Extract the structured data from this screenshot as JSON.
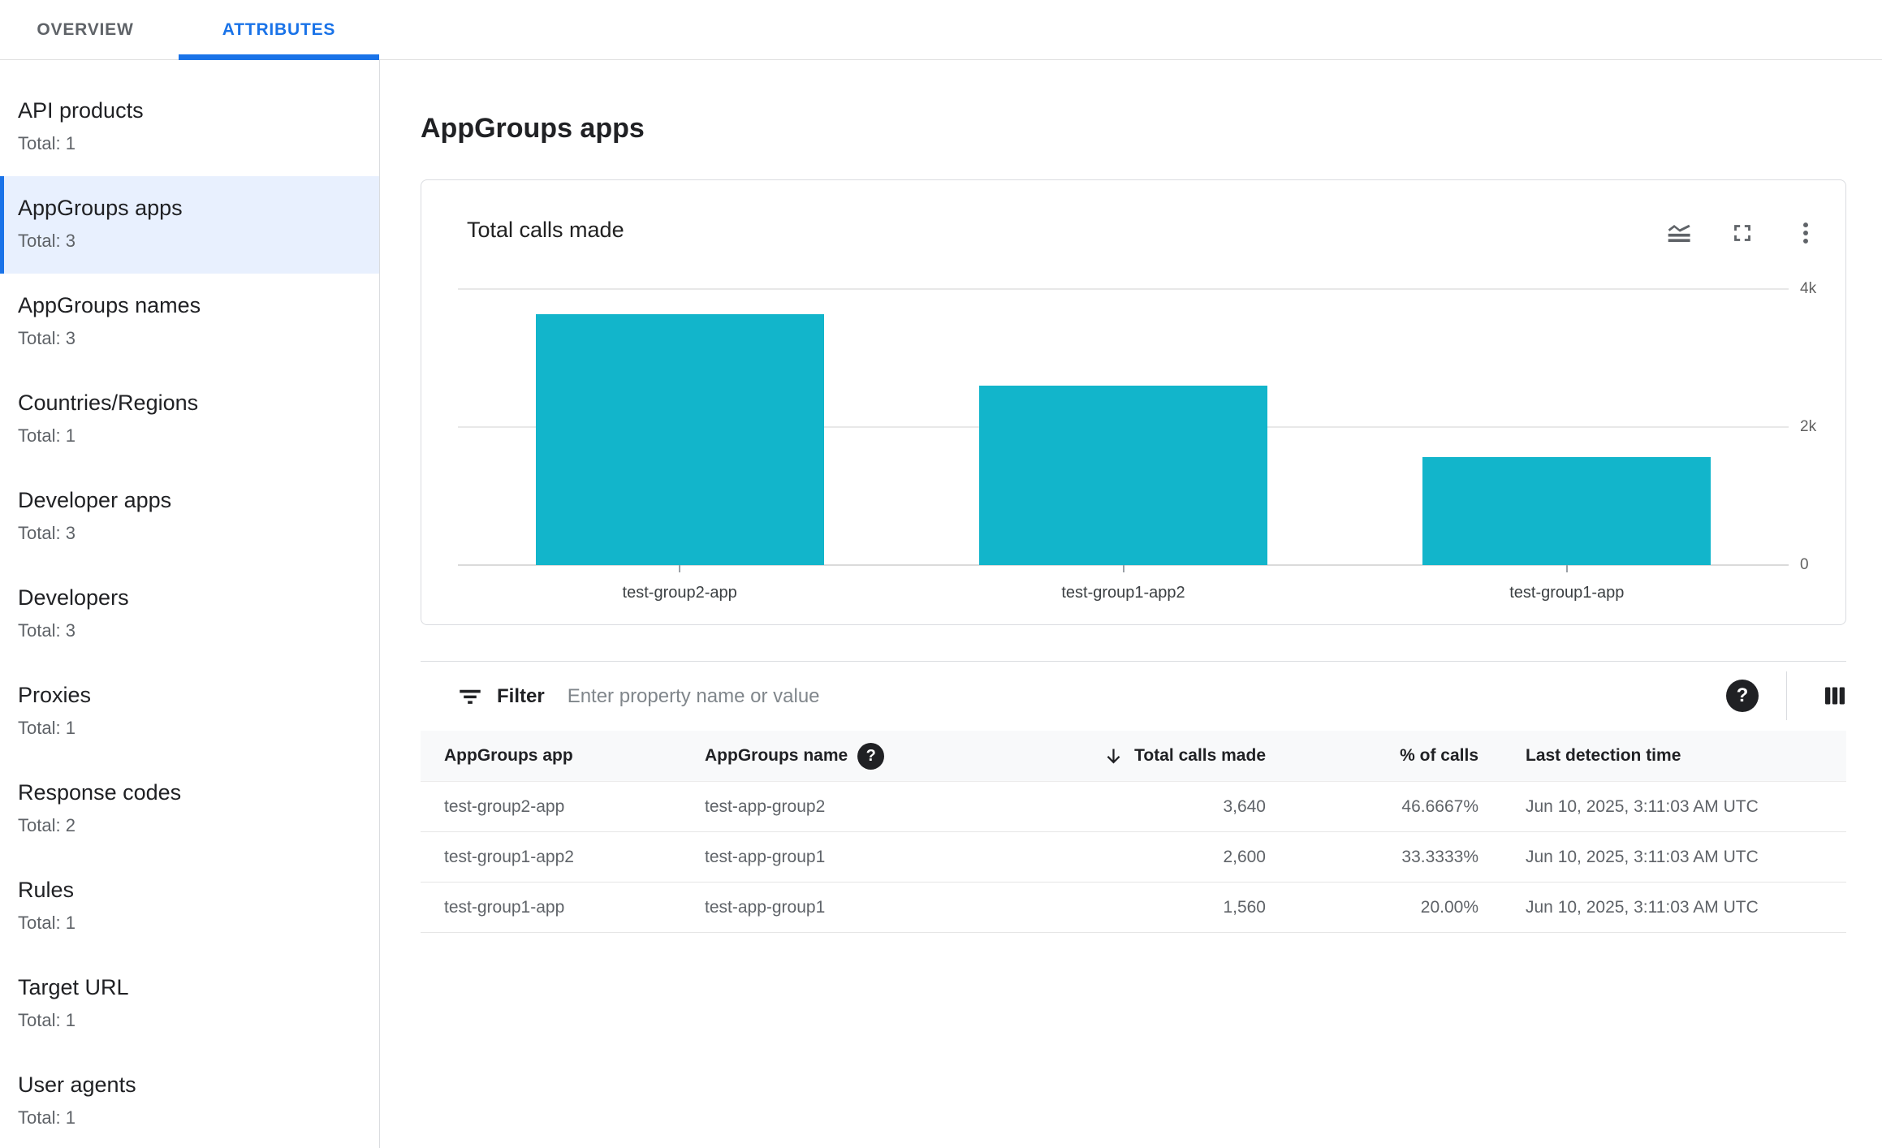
{
  "tabs": [
    {
      "label": "OVERVIEW",
      "active": false
    },
    {
      "label": "ATTRIBUTES",
      "active": true
    }
  ],
  "sidebar": {
    "items": [
      {
        "label": "API products",
        "total": "Total: 1",
        "selected": false
      },
      {
        "label": "AppGroups apps",
        "total": "Total: 3",
        "selected": true
      },
      {
        "label": "AppGroups names",
        "total": "Total: 3",
        "selected": false
      },
      {
        "label": "Countries/Regions",
        "total": "Total: 1",
        "selected": false
      },
      {
        "label": "Developer apps",
        "total": "Total: 3",
        "selected": false
      },
      {
        "label": "Developers",
        "total": "Total: 3",
        "selected": false
      },
      {
        "label": "Proxies",
        "total": "Total: 1",
        "selected": false
      },
      {
        "label": "Response codes",
        "total": "Total: 2",
        "selected": false
      },
      {
        "label": "Rules",
        "total": "Total: 1",
        "selected": false
      },
      {
        "label": "Target URL",
        "total": "Total: 1",
        "selected": false
      },
      {
        "label": "User agents",
        "total": "Total: 1",
        "selected": false
      }
    ]
  },
  "main": {
    "title": "AppGroups apps"
  },
  "card": {
    "title": "Total calls made",
    "icons": [
      "chart-type-icon",
      "fullscreen-icon",
      "more-vert-icon"
    ],
    "chart_data": {
      "type": "bar",
      "title": "Total calls made",
      "categories": [
        "test-group2-app",
        "test-group1-app2",
        "test-group1-app"
      ],
      "values": [
        3640,
        2600,
        1560
      ],
      "xlabel": "",
      "ylabel": "",
      "ylim": [
        0,
        4000
      ],
      "yticks": [
        {
          "value": 0,
          "label": "0"
        },
        {
          "value": 2000,
          "label": "2k"
        },
        {
          "value": 4000,
          "label": "4k"
        }
      ],
      "bar_color": "#12b5cb",
      "grid": "horizontal",
      "axis_side": "right",
      "legend": "none"
    }
  },
  "filter": {
    "label": "Filter",
    "placeholder": "Enter property name or value",
    "icons": [
      "filter-list-icon",
      "help-icon",
      "view-columns-icon"
    ]
  },
  "table": {
    "columns": [
      {
        "label": "AppGroups app",
        "align": "left"
      },
      {
        "label": "AppGroups name",
        "align": "left",
        "help": true
      },
      {
        "label": "Total calls made",
        "align": "right",
        "sorted": "desc"
      },
      {
        "label": "% of calls",
        "align": "right"
      },
      {
        "label": "Last detection time",
        "align": "left"
      }
    ],
    "rows": [
      [
        "test-group2-app",
        "test-app-group2",
        "3,640",
        "46.6667%",
        "Jun 10, 2025, 3:11:03 AM UTC"
      ],
      [
        "test-group1-app2",
        "test-app-group1",
        "2,600",
        "33.3333%",
        "Jun 10, 2025, 3:11:03 AM UTC"
      ],
      [
        "test-group1-app",
        "test-app-group1",
        "1,560",
        "20.00%",
        "Jun 10, 2025, 3:11:03 AM UTC"
      ]
    ]
  },
  "colors": {
    "accent": "#1a73e8",
    "bar": "#12b5cb",
    "selected_bg": "#e8f0fe"
  }
}
